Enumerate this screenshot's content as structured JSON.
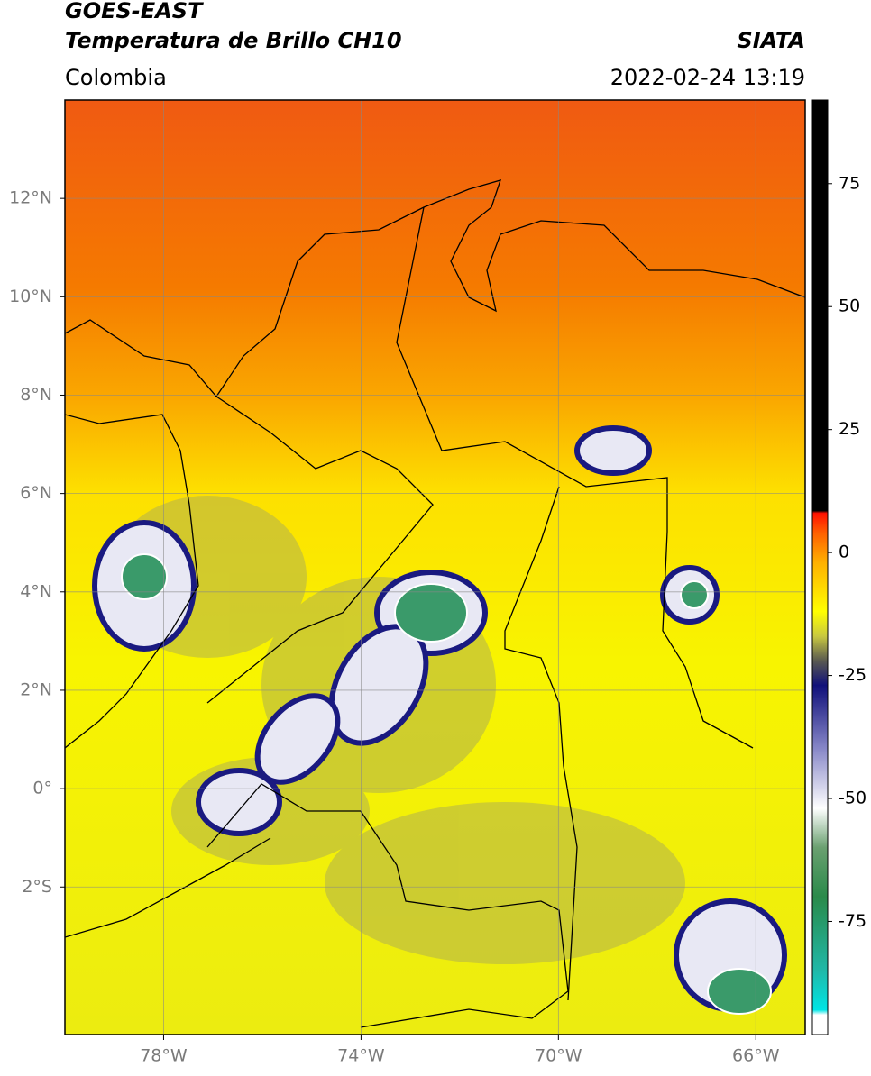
{
  "header": {
    "title": "GOES-EAST",
    "subtitle": "Temperatura de Brillo CH10",
    "source": "SIATA",
    "region": "Colombia",
    "datetime": "2022-02-24 13:19"
  },
  "map": {
    "xlim": [
      -80,
      -65
    ],
    "ylim": [
      -5,
      14
    ],
    "grid": true,
    "xticks": [
      {
        "value": -78,
        "label": "78°W"
      },
      {
        "value": -74,
        "label": "74°W"
      },
      {
        "value": -70,
        "label": "70°W"
      },
      {
        "value": -66,
        "label": "66°W"
      }
    ],
    "yticks": [
      {
        "value": 12,
        "label": "12°N"
      },
      {
        "value": 10,
        "label": "10°N"
      },
      {
        "value": 8,
        "label": "8°N"
      },
      {
        "value": 6,
        "label": "6°N"
      },
      {
        "value": 4,
        "label": "4°N"
      },
      {
        "value": 2,
        "label": "2°N"
      },
      {
        "value": 0,
        "label": "0°"
      },
      {
        "value": -2,
        "label": "2°S"
      }
    ]
  },
  "colorbar": {
    "lim": [
      -98,
      92
    ],
    "ticks": [
      75,
      50,
      25,
      0,
      -25,
      -50,
      -75
    ],
    "stops": [
      {
        "value": -98,
        "color": "#ffffff"
      },
      {
        "value": -94,
        "color": "#ffffff"
      },
      {
        "value": -93,
        "color": "#00e5e5"
      },
      {
        "value": -85,
        "color": "#20b8a8"
      },
      {
        "value": -70,
        "color": "#2a8a4a"
      },
      {
        "value": -60,
        "color": "#6aa070"
      },
      {
        "value": -52,
        "color": "#ffffff"
      },
      {
        "value": -40,
        "color": "#8888c8"
      },
      {
        "value": -27,
        "color": "#10107a"
      },
      {
        "value": -22,
        "color": "#5a5a50"
      },
      {
        "value": -17,
        "color": "#c8c840"
      },
      {
        "value": -12,
        "color": "#ffff00"
      },
      {
        "value": -2,
        "color": "#ffb000"
      },
      {
        "value": 4,
        "color": "#ff6000"
      },
      {
        "value": 8,
        "color": "#ff1000"
      },
      {
        "value": 8.5,
        "color": "#000000"
      },
      {
        "value": 92,
        "color": "#000000"
      }
    ]
  }
}
